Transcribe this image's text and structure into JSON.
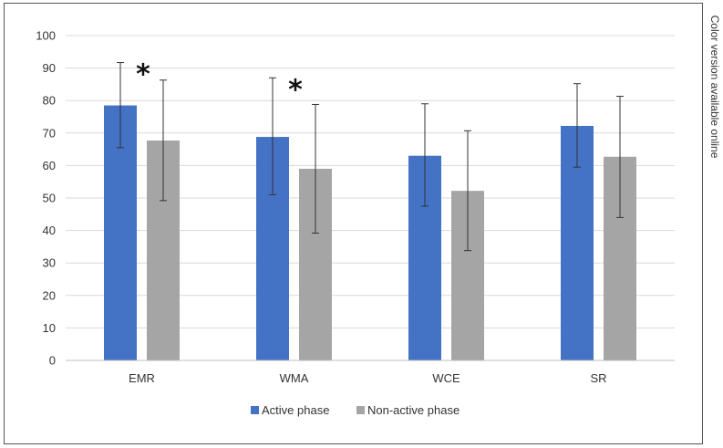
{
  "side_note": "Color version available online",
  "colors": {
    "active": "#4472C4",
    "non_active": "#A5A5A5",
    "grid": "#D9D9D9",
    "error": "#333333"
  },
  "chart_data": {
    "type": "bar",
    "categories": [
      "EMR",
      "WMA",
      "WCE",
      "SR"
    ],
    "series": [
      {
        "name": "Active phase",
        "values": [
          78.5,
          68.8,
          63.0,
          72.2
        ],
        "error_low": [
          65.5,
          51.0,
          47.5,
          59.5
        ],
        "error_high": [
          91.7,
          87.0,
          79.0,
          85.2
        ]
      },
      {
        "name": "Non-active phase",
        "values": [
          67.7,
          59.0,
          52.2,
          62.7
        ],
        "error_low": [
          49.2,
          39.2,
          33.8,
          44.0
        ],
        "error_high": [
          86.3,
          78.8,
          70.7,
          81.3
        ]
      }
    ],
    "significance": [
      "*",
      "*",
      "",
      ""
    ],
    "ylim": [
      0,
      100
    ],
    "yticks": [
      "0",
      "10",
      "20",
      "30",
      "40",
      "50",
      "60",
      "70",
      "80",
      "90",
      "100"
    ],
    "grid": true,
    "legend": "bottom",
    "title": "",
    "xlabel": "",
    "ylabel": ""
  }
}
